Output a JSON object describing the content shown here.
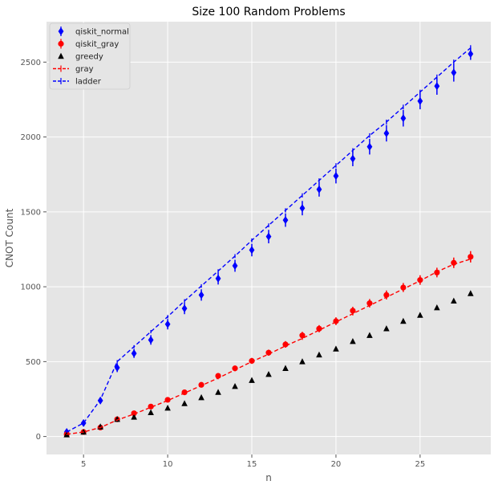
{
  "chart_data": {
    "type": "scatter",
    "title": "Size 100 Random Problems",
    "xlabel": "n",
    "ylabel": "CNOT Count",
    "xlim": [
      2.8,
      29.2
    ],
    "ylim": [
      -120,
      2770
    ],
    "xticks": [
      5,
      10,
      15,
      20,
      25
    ],
    "yticks": [
      0,
      500,
      1000,
      1500,
      2000,
      2500
    ],
    "grid": true,
    "legend_position": "top-left",
    "x": [
      4,
      5,
      6,
      7,
      8,
      9,
      10,
      11,
      12,
      13,
      14,
      15,
      16,
      17,
      18,
      19,
      20,
      21,
      22,
      23,
      24,
      25,
      26,
      27,
      28
    ],
    "series": [
      {
        "name": "qiskit_normal",
        "style": "marker",
        "marker": "diamond",
        "color": "#0000ff",
        "values": [
          30,
          90,
          240,
          460,
          555,
          645,
          750,
          855,
          945,
          1055,
          1140,
          1245,
          1335,
          1445,
          1525,
          1650,
          1740,
          1855,
          1935,
          2025,
          2125,
          2240,
          2340,
          2430,
          2555
        ],
        "errors": [
          12,
          15,
          20,
          30,
          30,
          32,
          35,
          38,
          38,
          40,
          40,
          42,
          45,
          45,
          48,
          48,
          50,
          50,
          52,
          55,
          55,
          55,
          58,
          60,
          40
        ]
      },
      {
        "name": "qiskit_gray",
        "style": "marker",
        "marker": "circle",
        "color": "#ff0000",
        "values": [
          15,
          30,
          60,
          115,
          155,
          200,
          245,
          295,
          345,
          405,
          455,
          505,
          560,
          615,
          675,
          720,
          770,
          840,
          890,
          945,
          995,
          1045,
          1095,
          1160,
          1200
        ],
        "errors": [
          6,
          8,
          10,
          12,
          12,
          14,
          14,
          16,
          16,
          18,
          18,
          20,
          20,
          22,
          24,
          24,
          26,
          26,
          28,
          30,
          30,
          32,
          32,
          35,
          38
        ]
      },
      {
        "name": "greedy",
        "style": "marker",
        "marker": "triangle",
        "color": "#000000",
        "values": [
          12,
          30,
          65,
          115,
          130,
          160,
          190,
          220,
          260,
          295,
          335,
          375,
          415,
          455,
          500,
          545,
          585,
          635,
          675,
          720,
          770,
          810,
          860,
          905,
          955
        ],
        "errors": []
      },
      {
        "name": "gray",
        "style": "dashed-line",
        "color": "#ff0000",
        "values": [
          15,
          30,
          60,
          110,
          150,
          195,
          240,
          290,
          340,
          390,
          445,
          500,
          550,
          605,
          655,
          710,
          765,
          820,
          875,
          930,
          985,
          1040,
          1100,
          1150,
          1185
        ],
        "errors": [
          3,
          4,
          5,
          5,
          6,
          6,
          7,
          7,
          8,
          8,
          9,
          9,
          10,
          10,
          10,
          11,
          11,
          12,
          12,
          12,
          13,
          13,
          14,
          14,
          15
        ]
      },
      {
        "name": "ladder",
        "style": "dashed-line",
        "color": "#0000ff",
        "values": [
          30,
          90,
          245,
          500,
          600,
          700,
          800,
          905,
          1005,
          1105,
          1205,
          1310,
          1410,
          1510,
          1610,
          1710,
          1810,
          1910,
          2010,
          2100,
          2200,
          2300,
          2400,
          2500,
          2595
        ],
        "errors": [
          5,
          6,
          8,
          10,
          10,
          11,
          11,
          12,
          12,
          12,
          13,
          13,
          13,
          14,
          14,
          14,
          15,
          15,
          15,
          16,
          16,
          16,
          17,
          17,
          18
        ]
      }
    ]
  }
}
